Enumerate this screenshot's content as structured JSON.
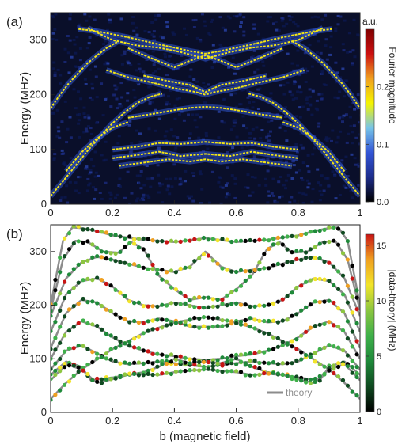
{
  "chart_data": [
    {
      "type": "heatmap",
      "panel_label": "(a)",
      "xlabel": "",
      "ylabel": "Energy (MHz)",
      "xlim": [
        0,
        1
      ],
      "ylim": [
        0,
        350
      ],
      "xticks": [
        0,
        0.2,
        0.4,
        0.6,
        0.8,
        1
      ],
      "xtick_labels": [
        "0",
        "0.2",
        "0.4",
        "0.6",
        "0.8",
        "1"
      ],
      "yticks": [
        0,
        100,
        200,
        300
      ],
      "ytick_labels": [
        "0",
        "100",
        "200",
        "300"
      ],
      "colorbar": {
        "title": "a.u.",
        "label": "Fourier magnitude",
        "range": [
          0,
          0.3
        ],
        "ticks": [
          0,
          0.1,
          0.2
        ],
        "tick_labels": [
          "0.0",
          "0.1",
          "0.2"
        ],
        "colors": [
          "#000000",
          "#1d2d8c",
          "#3355d6",
          "#77c4e8",
          "#f5f500",
          "#f0a020",
          "#cc1010",
          "#800000"
        ]
      },
      "background_color": "#0a0f2a",
      "band_color": "#f3e516",
      "halo_color": "#2f56cc",
      "bands": [
        {
          "x": [
            0.09,
            0.15,
            0.25,
            0.35,
            0.45,
            0.5,
            0.55,
            0.65,
            0.75,
            0.85,
            0.91
          ],
          "y": [
            320,
            316,
            305,
            292,
            280,
            275,
            280,
            292,
            305,
            316,
            320
          ]
        },
        {
          "x": [
            0.12,
            0.2,
            0.28,
            0.35,
            0.42,
            0.5,
            0.58,
            0.65,
            0.72,
            0.8,
            0.88
          ],
          "y": [
            322,
            300,
            290,
            286,
            278,
            266,
            278,
            286,
            290,
            300,
            322
          ]
        },
        {
          "x": [
            0.25,
            0.32,
            0.4,
            0.45,
            0.5,
            0.55,
            0.6,
            0.68,
            0.75
          ],
          "y": [
            285,
            268,
            250,
            262,
            272,
            262,
            250,
            268,
            285
          ]
        },
        {
          "x": [
            0.3,
            0.38,
            0.45,
            0.5,
            0.55,
            0.62,
            0.7
          ],
          "y": [
            235,
            225,
            218,
            205,
            218,
            225,
            235
          ]
        },
        {
          "x": [
            0.18,
            0.25,
            0.33,
            0.4,
            0.47,
            0.5,
            0.53,
            0.6,
            0.67,
            0.75,
            0.82
          ],
          "y": [
            245,
            232,
            222,
            212,
            205,
            200,
            205,
            212,
            222,
            232,
            245
          ]
        },
        {
          "x": [
            0.2,
            0.28,
            0.35,
            0.42,
            0.5,
            0.58,
            0.65,
            0.72,
            0.8
          ],
          "y": [
            100,
            105,
            112,
            110,
            114,
            110,
            112,
            105,
            100
          ]
        },
        {
          "x": [
            0.2,
            0.28,
            0.35,
            0.42,
            0.5,
            0.58,
            0.65,
            0.72,
            0.8
          ],
          "y": [
            84,
            90,
            96,
            88,
            92,
            88,
            96,
            90,
            84
          ]
        },
        {
          "x": [
            0.22,
            0.3,
            0.38,
            0.45,
            0.5,
            0.55,
            0.62,
            0.7,
            0.78
          ],
          "y": [
            70,
            76,
            82,
            78,
            82,
            78,
            82,
            76,
            70
          ]
        },
        {
          "x": [
            0.25,
            0.33,
            0.4,
            0.45,
            0.5,
            0.55,
            0.6,
            0.67,
            0.75
          ],
          "y": [
            158,
            165,
            172,
            176,
            178,
            176,
            172,
            165,
            158
          ]
        },
        {
          "x": [
            0.0,
            0.04,
            0.08,
            0.12,
            0.16,
            0.2,
            0.24,
            0.28,
            0.32,
            0.36
          ],
          "y": [
            15,
            42,
            70,
            98,
            124,
            148,
            168,
            185,
            196,
            202
          ]
        },
        {
          "x": [
            0.64,
            0.68,
            0.72,
            0.76,
            0.8,
            0.84,
            0.88,
            0.92,
            0.96,
            1.0
          ],
          "y": [
            202,
            196,
            185,
            168,
            148,
            124,
            98,
            70,
            42,
            15
          ]
        },
        {
          "x": [
            0.0,
            0.03,
            0.06,
            0.09,
            0.12,
            0.15,
            0.18,
            0.22
          ],
          "y": [
            175,
            200,
            222,
            240,
            258,
            272,
            285,
            298
          ]
        },
        {
          "x": [
            0.78,
            0.82,
            0.85,
            0.88,
            0.91,
            0.94,
            0.97,
            1.0
          ],
          "y": [
            298,
            285,
            272,
            258,
            240,
            222,
            200,
            175
          ]
        },
        {
          "x": [
            0.05,
            0.1,
            0.15,
            0.2,
            0.25
          ],
          "y": [
            60,
            95,
            120,
            140,
            150
          ]
        },
        {
          "x": [
            0.75,
            0.8,
            0.85,
            0.9,
            0.95
          ],
          "y": [
            150,
            140,
            120,
            95,
            60
          ]
        }
      ]
    },
    {
      "type": "scatter",
      "panel_label": "(b)",
      "xlabel": "b (magnetic field)",
      "ylabel": "Energy (MHz)",
      "xlim": [
        0,
        1
      ],
      "ylim": [
        0,
        350
      ],
      "xticks": [
        0,
        0.2,
        0.4,
        0.6,
        0.8,
        1
      ],
      "xtick_labels": [
        "0",
        "0.2",
        "0.4",
        "0.6",
        "0.8",
        "1"
      ],
      "yticks": [
        0,
        100,
        200,
        300
      ],
      "ytick_labels": [
        "0",
        "100",
        "200",
        "300"
      ],
      "colorbar": {
        "label": "|data-theory| (MHz)",
        "range": [
          0,
          16
        ],
        "ticks": [
          0,
          5,
          10,
          15
        ],
        "tick_labels": [
          "0",
          "5",
          "10",
          "15"
        ],
        "colors": [
          "#000000",
          "#0f4a20",
          "#1f8a3a",
          "#3fb04a",
          "#8cc640",
          "#f2e52a",
          "#f0a020",
          "#c81414"
        ]
      },
      "legend": {
        "label": "theory",
        "color": "#8c8c8c",
        "position": "bottom-right"
      },
      "theory_curves": [
        {
          "x": [
            0.0,
            0.04,
            0.07,
            0.1,
            0.15,
            0.2,
            0.3,
            0.4,
            0.5,
            0.6,
            0.7,
            0.8,
            0.85,
            0.9,
            0.93,
            0.96,
            1.0
          ],
          "y": [
            200,
            320,
            345,
            344,
            338,
            330,
            322,
            318,
            325,
            318,
            322,
            330,
            338,
            344,
            345,
            320,
            200
          ]
        },
        {
          "x": [
            0.0,
            0.04,
            0.08,
            0.12,
            0.17,
            0.22,
            0.26,
            0.3,
            0.35,
            0.4,
            0.45,
            0.5,
            0.55,
            0.6,
            0.65,
            0.7,
            0.74,
            0.78,
            0.83,
            0.88,
            0.92,
            0.96,
            1.0
          ],
          "y": [
            190,
            285,
            320,
            318,
            300,
            298,
            318,
            305,
            255,
            230,
            210,
            215,
            210,
            230,
            255,
            305,
            318,
            298,
            300,
            318,
            320,
            285,
            190
          ]
        },
        {
          "x": [
            0.0,
            0.05,
            0.1,
            0.15,
            0.2,
            0.3,
            0.4,
            0.45,
            0.5,
            0.55,
            0.6,
            0.7,
            0.8,
            0.85,
            0.9,
            0.95,
            1.0
          ],
          "y": [
            180,
            250,
            280,
            290,
            285,
            270,
            262,
            272,
            300,
            272,
            262,
            270,
            285,
            290,
            280,
            250,
            180
          ]
        },
        {
          "x": [
            0.0,
            0.05,
            0.1,
            0.15,
            0.2,
            0.25,
            0.3,
            0.35,
            0.4,
            0.45,
            0.5,
            0.55,
            0.6,
            0.65,
            0.7,
            0.75,
            0.8,
            0.85,
            0.9,
            0.95,
            1.0
          ],
          "y": [
            150,
            220,
            245,
            250,
            235,
            210,
            200,
            198,
            205,
            200,
            195,
            200,
            205,
            198,
            200,
            210,
            235,
            250,
            245,
            220,
            150
          ]
        },
        {
          "x": [
            0.0,
            0.05,
            0.1,
            0.15,
            0.2,
            0.25,
            0.3,
            0.35,
            0.4,
            0.45,
            0.5,
            0.55,
            0.6,
            0.65,
            0.7,
            0.75,
            0.8,
            0.85,
            0.9,
            0.95,
            1.0
          ],
          "y": [
            120,
            185,
            210,
            205,
            185,
            170,
            168,
            175,
            170,
            160,
            160,
            160,
            170,
            175,
            168,
            170,
            185,
            205,
            210,
            185,
            120
          ]
        },
        {
          "x": [
            0.0,
            0.05,
            0.1,
            0.15,
            0.2,
            0.25,
            0.3,
            0.35,
            0.4,
            0.45,
            0.5,
            0.55,
            0.6,
            0.65,
            0.7,
            0.75,
            0.8,
            0.85,
            0.9,
            0.95,
            1.0
          ],
          "y": [
            100,
            150,
            170,
            160,
            140,
            125,
            115,
            108,
            105,
            100,
            98,
            100,
            105,
            108,
            115,
            125,
            140,
            160,
            170,
            150,
            100
          ]
        },
        {
          "x": [
            0.0,
            0.05,
            0.1,
            0.15,
            0.2,
            0.25,
            0.3,
            0.35,
            0.4,
            0.45,
            0.5,
            0.55,
            0.6,
            0.65,
            0.7,
            0.75,
            0.8,
            0.85,
            0.9,
            0.95,
            1.0
          ],
          "y": [
            80,
            115,
            125,
            110,
            95,
            90,
            92,
            95,
            92,
            88,
            85,
            88,
            92,
            95,
            92,
            90,
            95,
            110,
            125,
            115,
            80
          ]
        },
        {
          "x": [
            0.0,
            0.05,
            0.1,
            0.13,
            0.2,
            0.3,
            0.35,
            0.4,
            0.45,
            0.5,
            0.55,
            0.6,
            0.65,
            0.7,
            0.8,
            0.87,
            0.9,
            0.95,
            1.0
          ],
          "y": [
            70,
            95,
            85,
            60,
            65,
            75,
            85,
            100,
            92,
            95,
            92,
            100,
            85,
            75,
            65,
            60,
            85,
            95,
            70
          ]
        },
        {
          "x": [
            0.0,
            0.05,
            0.1,
            0.2,
            0.3,
            0.4,
            0.5,
            0.6,
            0.7,
            0.8,
            0.9,
            0.95,
            1.0
          ],
          "y": [
            25,
            55,
            80,
            118,
            148,
            168,
            178,
            168,
            148,
            118,
            80,
            55,
            25
          ]
        },
        {
          "x": [
            0.0,
            0.05,
            0.1,
            0.15,
            0.2,
            0.25,
            0.3,
            0.35,
            0.4,
            0.45,
            0.5,
            0.55,
            0.6,
            0.65,
            0.7,
            0.75,
            0.8,
            0.85,
            0.9,
            0.95,
            1.0
          ],
          "y": [
            60,
            90,
            80,
            55,
            62,
            70,
            72,
            70,
            75,
            78,
            80,
            78,
            75,
            70,
            72,
            70,
            62,
            55,
            80,
            90,
            60
          ]
        }
      ],
      "point_spacing": 0.015
    }
  ]
}
